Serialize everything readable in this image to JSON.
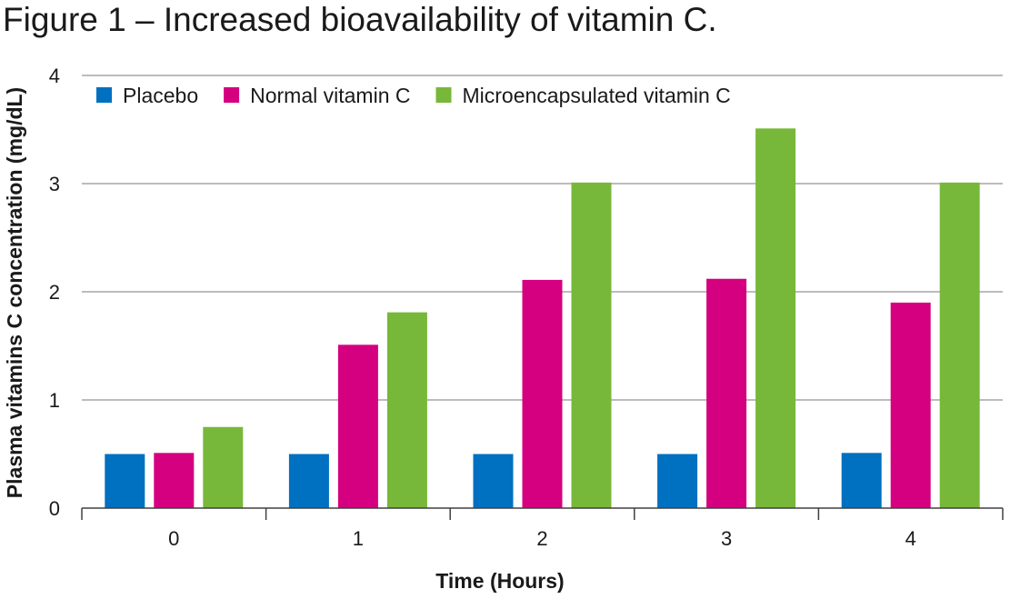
{
  "chart_data": {
    "type": "bar",
    "title": "Figure 1 – Increased bioavailability of vitamin C.",
    "xlabel": "Time (Hours)",
    "ylabel": "Plasma vitamins C concentration (mg/dL)",
    "categories": [
      "0",
      "1",
      "2",
      "3",
      "4"
    ],
    "series": [
      {
        "name": "Placebo",
        "color": "#0070c0",
        "values": [
          0.5,
          0.5,
          0.5,
          0.5,
          0.51
        ]
      },
      {
        "name": "Normal vitamin C",
        "color": "#d5007f",
        "values": [
          0.51,
          1.51,
          2.11,
          2.12,
          1.9
        ]
      },
      {
        "name": "Microencapsulated vitamin C",
        "color": "#77b83a",
        "values": [
          0.75,
          1.81,
          3.01,
          3.51,
          3.01
        ]
      }
    ],
    "yticks": [
      "0",
      "1",
      "2",
      "3",
      "4"
    ],
    "ylim": [
      0,
      4
    ],
    "grid": true,
    "legend_position": "top-left"
  }
}
